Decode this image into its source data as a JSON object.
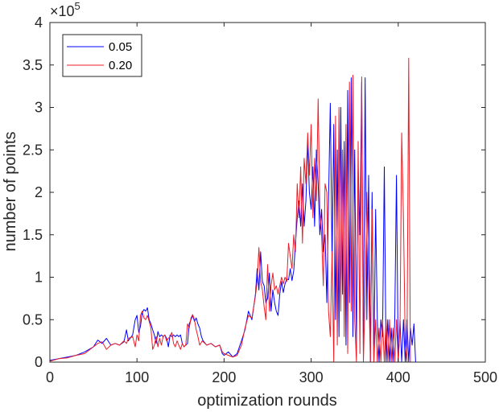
{
  "chart_data": {
    "type": "line",
    "title": "",
    "xlabel": "optimization rounds",
    "ylabel": "number of points",
    "y_exponent_label": "×10",
    "y_exponent_power": "5",
    "xlim": [
      0,
      500
    ],
    "ylim": [
      0,
      4
    ],
    "y_multiplier": 100000,
    "xticks": [
      "0",
      "100",
      "200",
      "300",
      "400",
      "500"
    ],
    "yticks": [
      "0",
      "0.5",
      "1",
      "1.5",
      "2",
      "2.5",
      "3",
      "3.5",
      "4"
    ],
    "grid": false,
    "legend_position": "top-left",
    "series": [
      {
        "name": "0.05",
        "color": "#0000ff",
        "points": [
          [
            0,
            0.02
          ],
          [
            10,
            0.04
          ],
          [
            20,
            0.06
          ],
          [
            30,
            0.08
          ],
          [
            40,
            0.12
          ],
          [
            50,
            0.18
          ],
          [
            55,
            0.26
          ],
          [
            60,
            0.22
          ],
          [
            65,
            0.28
          ],
          [
            70,
            0.2
          ],
          [
            75,
            0.22
          ],
          [
            80,
            0.2
          ],
          [
            85,
            0.24
          ],
          [
            88,
            0.38
          ],
          [
            90,
            0.25
          ],
          [
            95,
            0.32
          ],
          [
            98,
            0.5
          ],
          [
            100,
            0.55
          ],
          [
            102,
            0.35
          ],
          [
            104,
            0.42
          ],
          [
            106,
            0.58
          ],
          [
            108,
            0.62
          ],
          [
            110,
            0.6
          ],
          [
            112,
            0.64
          ],
          [
            114,
            0.5
          ],
          [
            116,
            0.45
          ],
          [
            118,
            0.38
          ],
          [
            120,
            0.32
          ],
          [
            122,
            0.22
          ],
          [
            124,
            0.36
          ],
          [
            126,
            0.3
          ],
          [
            128,
            0.32
          ],
          [
            130,
            0.3
          ],
          [
            132,
            0.32
          ],
          [
            134,
            0.28
          ],
          [
            136,
            0.18
          ],
          [
            138,
            0.32
          ],
          [
            140,
            0.3
          ],
          [
            142,
            0.32
          ],
          [
            144,
            0.3
          ],
          [
            146,
            0.32
          ],
          [
            148,
            0.3
          ],
          [
            150,
            0.32
          ],
          [
            152,
            0.22
          ],
          [
            154,
            0.18
          ],
          [
            156,
            0.2
          ],
          [
            158,
            0.22
          ],
          [
            160,
            0.45
          ],
          [
            162,
            0.5
          ],
          [
            164,
            0.55
          ],
          [
            166,
            0.48
          ],
          [
            168,
            0.52
          ],
          [
            170,
            0.45
          ],
          [
            172,
            0.4
          ],
          [
            174,
            0.3
          ],
          [
            176,
            0.25
          ],
          [
            180,
            0.2
          ],
          [
            185,
            0.22
          ],
          [
            190,
            0.18
          ],
          [
            195,
            0.2
          ],
          [
            198,
            0.1
          ],
          [
            200,
            0.08
          ],
          [
            205,
            0.12
          ],
          [
            210,
            0.06
          ],
          [
            215,
            0.1
          ],
          [
            220,
            0.25
          ],
          [
            224,
            0.38
          ],
          [
            228,
            0.6
          ],
          [
            232,
            0.5
          ],
          [
            236,
            0.8
          ],
          [
            238,
            1.1
          ],
          [
            240,
            0.85
          ],
          [
            242,
            1.3
          ],
          [
            244,
            0.95
          ],
          [
            246,
            0.9
          ],
          [
            248,
            0.7
          ],
          [
            250,
            0.75
          ],
          [
            252,
            1.05
          ],
          [
            254,
            0.6
          ],
          [
            256,
            0.85
          ],
          [
            258,
            0.7
          ],
          [
            260,
            0.6
          ],
          [
            262,
            0.55
          ],
          [
            264,
            0.8
          ],
          [
            266,
            0.95
          ],
          [
            268,
            0.82
          ],
          [
            270,
            0.92
          ],
          [
            272,
            0.98
          ],
          [
            274,
            0.97
          ],
          [
            276,
            1.1
          ],
          [
            278,
            0.96
          ],
          [
            280,
            1.08
          ],
          [
            282,
            1.4
          ],
          [
            284,
            1.7
          ],
          [
            286,
            1.9
          ],
          [
            288,
            1.6
          ],
          [
            290,
            2.1
          ],
          [
            292,
            1.6
          ],
          [
            294,
            1.9
          ],
          [
            296,
            2.6
          ],
          [
            298,
            2.0
          ],
          [
            300,
            1.8
          ],
          [
            302,
            2.3
          ],
          [
            304,
            1.6
          ],
          [
            306,
            2.5
          ],
          [
            308,
            2.1
          ],
          [
            310,
            1.5
          ],
          [
            312,
            1.8
          ],
          [
            314,
            1.3
          ],
          [
            316,
            1.5
          ],
          [
            318,
            0.7
          ],
          [
            320,
            1.9
          ],
          [
            322,
            3.05
          ],
          [
            324,
            1.2
          ],
          [
            326,
            2.8
          ],
          [
            328,
            0.5
          ],
          [
            330,
            2.5
          ],
          [
            332,
            0.3
          ],
          [
            334,
            3.0
          ],
          [
            336,
            0.8
          ],
          [
            338,
            2.6
          ],
          [
            340,
            0.2
          ],
          [
            342,
            3.2
          ],
          [
            344,
            0.7
          ],
          [
            346,
            3.35
          ],
          [
            348,
            0.3
          ],
          [
            350,
            2.5
          ],
          [
            352,
            0.2
          ],
          [
            354,
            2.3
          ],
          [
            356,
            1.5
          ],
          [
            358,
            3.3
          ],
          [
            360,
            0.1
          ],
          [
            362,
            3.35
          ],
          [
            364,
            0.5
          ],
          [
            366,
            2.2
          ],
          [
            368,
            0.0
          ],
          [
            370,
            2.0
          ],
          [
            372,
            0.0
          ],
          [
            374,
            1.8
          ],
          [
            376,
            0.5
          ],
          [
            378,
            0.0
          ],
          [
            380,
            0.5
          ],
          [
            382,
            0.3
          ],
          [
            384,
            2.3
          ],
          [
            386,
            0.0
          ],
          [
            388,
            0.5
          ],
          [
            390,
            0.0
          ],
          [
            392,
            0.4
          ],
          [
            394,
            0.0
          ],
          [
            396,
            0.5
          ],
          [
            398,
            2.2
          ],
          [
            400,
            0.0
          ],
          [
            402,
            0.5
          ],
          [
            404,
            0.0
          ],
          [
            406,
            0.5
          ],
          [
            408,
            0.0
          ],
          [
            410,
            0.5
          ],
          [
            412,
            0.0
          ],
          [
            414,
            0.4
          ],
          [
            416,
            0.2
          ],
          [
            418,
            0.45
          ],
          [
            420,
            0.0
          ]
        ]
      },
      {
        "name": "0.20",
        "color": "#ee1c25",
        "points": [
          [
            0,
            0.01
          ],
          [
            10,
            0.04
          ],
          [
            20,
            0.05
          ],
          [
            30,
            0.08
          ],
          [
            40,
            0.1
          ],
          [
            50,
            0.18
          ],
          [
            55,
            0.22
          ],
          [
            60,
            0.24
          ],
          [
            65,
            0.15
          ],
          [
            70,
            0.2
          ],
          [
            75,
            0.22
          ],
          [
            80,
            0.2
          ],
          [
            85,
            0.25
          ],
          [
            88,
            0.22
          ],
          [
            90,
            0.28
          ],
          [
            95,
            0.3
          ],
          [
            98,
            0.18
          ],
          [
            100,
            0.32
          ],
          [
            102,
            0.25
          ],
          [
            104,
            0.55
          ],
          [
            106,
            0.6
          ],
          [
            108,
            0.52
          ],
          [
            110,
            0.5
          ],
          [
            112,
            0.55
          ],
          [
            114,
            0.48
          ],
          [
            116,
            0.4
          ],
          [
            118,
            0.15
          ],
          [
            120,
            0.2
          ],
          [
            122,
            0.3
          ],
          [
            124,
            0.18
          ],
          [
            126,
            0.28
          ],
          [
            128,
            0.2
          ],
          [
            130,
            0.3
          ],
          [
            132,
            0.32
          ],
          [
            134,
            0.25
          ],
          [
            136,
            0.28
          ],
          [
            138,
            0.3
          ],
          [
            140,
            0.35
          ],
          [
            142,
            0.22
          ],
          [
            144,
            0.18
          ],
          [
            146,
            0.25
          ],
          [
            148,
            0.2
          ],
          [
            150,
            0.15
          ],
          [
            152,
            0.22
          ],
          [
            154,
            0.18
          ],
          [
            156,
            0.2
          ],
          [
            158,
            0.45
          ],
          [
            160,
            0.4
          ],
          [
            162,
            0.52
          ],
          [
            164,
            0.56
          ],
          [
            166,
            0.5
          ],
          [
            168,
            0.38
          ],
          [
            170,
            0.3
          ],
          [
            172,
            0.2
          ],
          [
            175,
            0.25
          ],
          [
            180,
            0.2
          ],
          [
            185,
            0.22
          ],
          [
            190,
            0.18
          ],
          [
            195,
            0.2
          ],
          [
            198,
            0.12
          ],
          [
            200,
            0.1
          ],
          [
            205,
            0.08
          ],
          [
            210,
            0.06
          ],
          [
            215,
            0.08
          ],
          [
            220,
            0.2
          ],
          [
            224,
            0.4
          ],
          [
            228,
            0.55
          ],
          [
            232,
            0.52
          ],
          [
            236,
            0.78
          ],
          [
            238,
            0.95
          ],
          [
            240,
            1.35
          ],
          [
            242,
            0.95
          ],
          [
            244,
            0.85
          ],
          [
            246,
            0.65
          ],
          [
            248,
            0.5
          ],
          [
            250,
            1.15
          ],
          [
            252,
            0.6
          ],
          [
            254,
            0.9
          ],
          [
            256,
            1.05
          ],
          [
            258,
            0.85
          ],
          [
            260,
            0.9
          ],
          [
            262,
            0.8
          ],
          [
            264,
            0.9
          ],
          [
            266,
            1.0
          ],
          [
            268,
            0.92
          ],
          [
            270,
            1.0
          ],
          [
            272,
            0.95
          ],
          [
            274,
            1.4
          ],
          [
            276,
            1.25
          ],
          [
            278,
            1.1
          ],
          [
            280,
            1.5
          ],
          [
            282,
            1.3
          ],
          [
            284,
            2.1
          ],
          [
            286,
            1.7
          ],
          [
            288,
            2.3
          ],
          [
            290,
            1.4
          ],
          [
            292,
            2.4
          ],
          [
            294,
            2.1
          ],
          [
            296,
            2.7
          ],
          [
            298,
            2.2
          ],
          [
            300,
            2.8
          ],
          [
            302,
            1.7
          ],
          [
            304,
            2.4
          ],
          [
            306,
            1.9
          ],
          [
            308,
            3.1
          ],
          [
            310,
            1.8
          ],
          [
            312,
            1.5
          ],
          [
            314,
            0.9
          ],
          [
            316,
            2.1
          ],
          [
            318,
            2.0
          ],
          [
            320,
            0.6
          ],
          [
            322,
            0.3
          ],
          [
            324,
            1.3
          ],
          [
            326,
            0.0
          ],
          [
            328,
            2.9
          ],
          [
            330,
            0.2
          ],
          [
            332,
            3.0
          ],
          [
            334,
            0.6
          ],
          [
            336,
            2.5
          ],
          [
            338,
            0.3
          ],
          [
            340,
            2.8
          ],
          [
            342,
            0.1
          ],
          [
            344,
            3.3
          ],
          [
            346,
            0.6
          ],
          [
            348,
            3.38
          ],
          [
            350,
            0.5
          ],
          [
            352,
            0.0
          ],
          [
            354,
            2.6
          ],
          [
            356,
            0.1
          ],
          [
            358,
            3.36
          ],
          [
            360,
            0.0
          ],
          [
            362,
            0.8
          ],
          [
            364,
            2.0
          ],
          [
            366,
            1.0
          ],
          [
            368,
            0.0
          ],
          [
            370,
            1.8
          ],
          [
            372,
            0.0
          ],
          [
            374,
            0.5
          ],
          [
            376,
            0.0
          ],
          [
            378,
            0.4
          ],
          [
            380,
            0.0
          ],
          [
            382,
            0.5
          ],
          [
            384,
            0.0
          ],
          [
            386,
            0.5
          ],
          [
            388,
            0.0
          ],
          [
            390,
            0.5
          ],
          [
            392,
            0.0
          ],
          [
            394,
            0.4
          ],
          [
            396,
            0.0
          ],
          [
            398,
            0.5
          ],
          [
            400,
            0.0
          ],
          [
            402,
            0.4
          ],
          [
            404,
            2.7
          ],
          [
            406,
            1.7
          ],
          [
            408,
            0.2
          ],
          [
            410,
            0.0
          ],
          [
            412,
            3.58
          ],
          [
            414,
            0.0
          ],
          [
            416,
            0.0
          ]
        ]
      }
    ]
  }
}
